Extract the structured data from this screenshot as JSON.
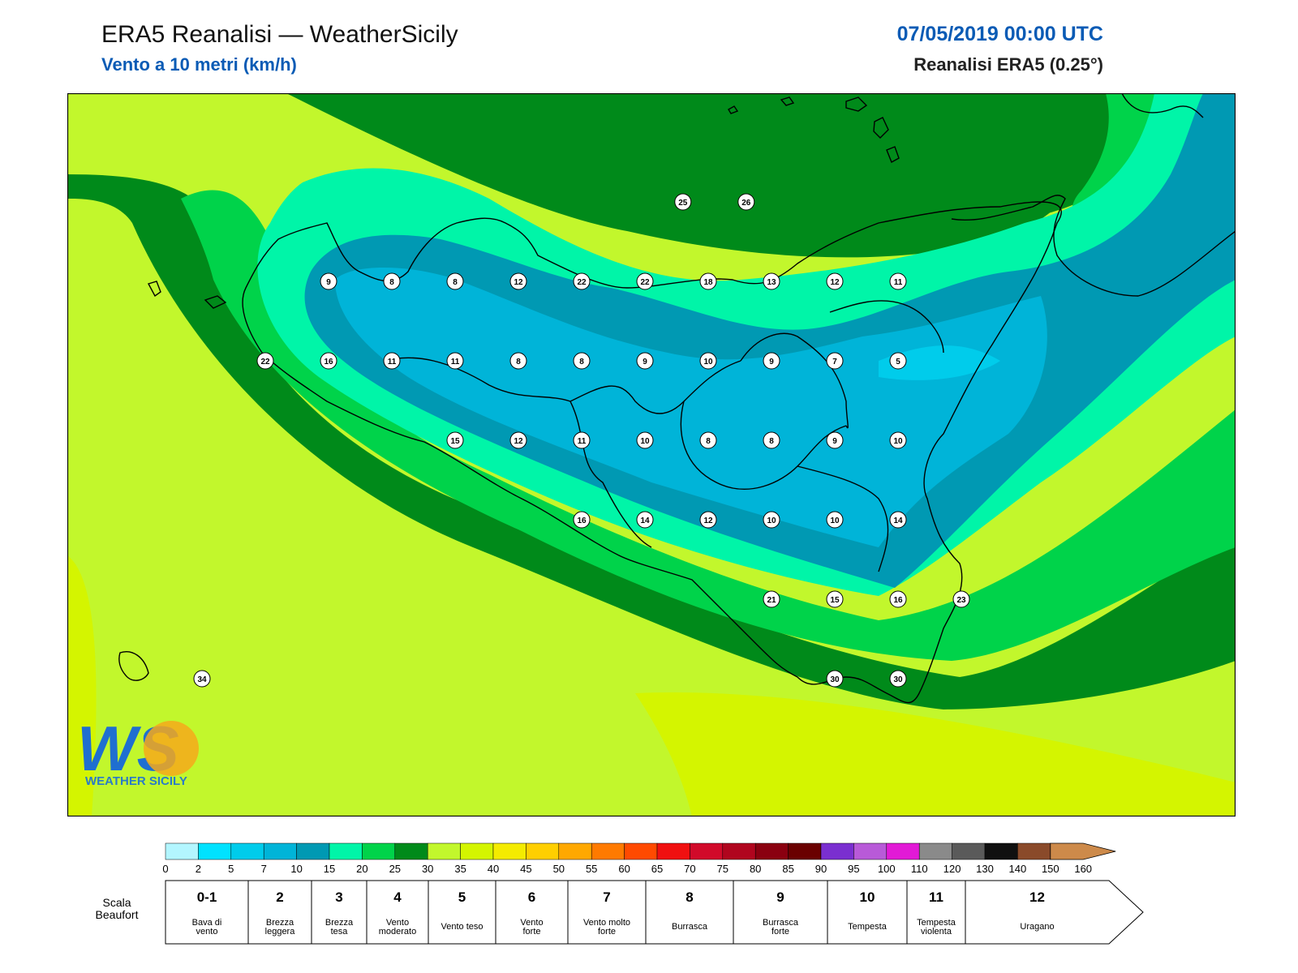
{
  "header": {
    "title": "ERA5 Reanalisi — WeatherSicily",
    "subtitle": "Vento a 10 metri (km/h)",
    "date": "07/05/2019 00:00 UTC",
    "source": "Reanalisi ERA5 (0.25°)"
  },
  "logo": {
    "mark": "WS",
    "name": "WEATHER SICILY"
  },
  "map": {
    "wind_speed_labels_kmh": [
      {
        "value": 25,
        "lat": 38.55,
        "lon": 15.1
      },
      {
        "value": 26,
        "lat": 38.55,
        "lon": 15.6
      },
      {
        "value": 9,
        "lat": 38.3,
        "lon": 12.3
      },
      {
        "value": 8,
        "lat": 38.3,
        "lon": 12.8
      },
      {
        "value": 8,
        "lat": 38.3,
        "lon": 13.3
      },
      {
        "value": 12,
        "lat": 38.3,
        "lon": 13.8
      },
      {
        "value": 22,
        "lat": 38.3,
        "lon": 14.3
      },
      {
        "value": 22,
        "lat": 38.3,
        "lon": 14.8
      },
      {
        "value": 18,
        "lat": 38.3,
        "lon": 15.3
      },
      {
        "value": 13,
        "lat": 38.3,
        "lon": 15.8
      },
      {
        "value": 12,
        "lat": 38.3,
        "lon": 16.3
      },
      {
        "value": 11,
        "lat": 38.3,
        "lon": 16.8
      },
      {
        "value": 22,
        "lat": 38.05,
        "lon": 11.8
      },
      {
        "value": 16,
        "lat": 38.05,
        "lon": 12.3
      },
      {
        "value": 11,
        "lat": 38.05,
        "lon": 12.8
      },
      {
        "value": 11,
        "lat": 38.05,
        "lon": 13.3
      },
      {
        "value": 8,
        "lat": 38.05,
        "lon": 13.8
      },
      {
        "value": 8,
        "lat": 38.05,
        "lon": 14.3
      },
      {
        "value": 9,
        "lat": 38.05,
        "lon": 14.8
      },
      {
        "value": 10,
        "lat": 38.05,
        "lon": 15.3
      },
      {
        "value": 9,
        "lat": 38.05,
        "lon": 15.8
      },
      {
        "value": 7,
        "lat": 38.05,
        "lon": 16.3
      },
      {
        "value": 5,
        "lat": 38.05,
        "lon": 16.8
      },
      {
        "value": 15,
        "lat": 37.8,
        "lon": 13.3
      },
      {
        "value": 12,
        "lat": 37.8,
        "lon": 13.8
      },
      {
        "value": 11,
        "lat": 37.8,
        "lon": 14.3
      },
      {
        "value": 10,
        "lat": 37.8,
        "lon": 14.8
      },
      {
        "value": 8,
        "lat": 37.8,
        "lon": 15.3
      },
      {
        "value": 8,
        "lat": 37.8,
        "lon": 15.8
      },
      {
        "value": 9,
        "lat": 37.8,
        "lon": 16.3
      },
      {
        "value": 10,
        "lat": 37.8,
        "lon": 16.8
      },
      {
        "value": 16,
        "lat": 37.55,
        "lon": 14.3
      },
      {
        "value": 14,
        "lat": 37.55,
        "lon": 14.8
      },
      {
        "value": 12,
        "lat": 37.55,
        "lon": 15.3
      },
      {
        "value": 10,
        "lat": 37.55,
        "lon": 15.8
      },
      {
        "value": 10,
        "lat": 37.55,
        "lon": 16.3
      },
      {
        "value": 14,
        "lat": 37.55,
        "lon": 16.8
      },
      {
        "value": 21,
        "lat": 37.3,
        "lon": 15.8
      },
      {
        "value": 15,
        "lat": 37.3,
        "lon": 16.3
      },
      {
        "value": 16,
        "lat": 37.3,
        "lon": 16.8
      },
      {
        "value": 23,
        "lat": 37.3,
        "lon": 17.3
      },
      {
        "value": 30,
        "lat": 37.05,
        "lon": 16.3
      },
      {
        "value": 30,
        "lat": 37.05,
        "lon": 16.8
      },
      {
        "value": 34,
        "lat": 37.05,
        "lon": 11.3
      }
    ]
  },
  "colorbar": {
    "ticks": [
      "0",
      "2",
      "5",
      "7",
      "10",
      "15",
      "20",
      "25",
      "30",
      "35",
      "40",
      "45",
      "50",
      "55",
      "60",
      "65",
      "70",
      "75",
      "80",
      "85",
      "90",
      "95",
      "100",
      "110",
      "120",
      "130",
      "140",
      "150",
      "160"
    ],
    "colors": [
      "#b3f6ff",
      "#00e2ff",
      "#00cceb",
      "#00b4d8",
      "#0099b3",
      "#00f5a8",
      "#00d34a",
      "#008a1a",
      "#c2f72c",
      "#d4f500",
      "#f4eb00",
      "#ffcf00",
      "#ffa800",
      "#ff7a00",
      "#ff4a00",
      "#f01010",
      "#d10a2a",
      "#b0051e",
      "#8a0010",
      "#6a0000",
      "#7a2fd0",
      "#b85ad8",
      "#e21ad6",
      "#8a8a8a",
      "#5a5a5a",
      "#101010",
      "#8a4a2a",
      "#cd8a4a"
    ]
  },
  "beaufort": {
    "label_line1": "Scala",
    "label_line2": "Beaufort",
    "cells": [
      {
        "num": "0-1",
        "desc1": "Bava di",
        "desc2": "vento"
      },
      {
        "num": "2",
        "desc1": "Brezza",
        "desc2": "leggera"
      },
      {
        "num": "3",
        "desc1": "Brezza",
        "desc2": "tesa"
      },
      {
        "num": "4",
        "desc1": "Vento",
        "desc2": "moderato"
      },
      {
        "num": "5",
        "desc1": "Vento teso",
        "desc2": ""
      },
      {
        "num": "6",
        "desc1": "Vento",
        "desc2": "forte"
      },
      {
        "num": "7",
        "desc1": "Vento molto",
        "desc2": "forte"
      },
      {
        "num": "8",
        "desc1": "Burrasca",
        "desc2": ""
      },
      {
        "num": "9",
        "desc1": "Burrasca",
        "desc2": "forte"
      },
      {
        "num": "10",
        "desc1": "Tempesta",
        "desc2": ""
      },
      {
        "num": "11",
        "desc1": "Tempesta",
        "desc2": "violenta"
      },
      {
        "num": "12",
        "desc1": "Uragano",
        "desc2": ""
      }
    ]
  }
}
